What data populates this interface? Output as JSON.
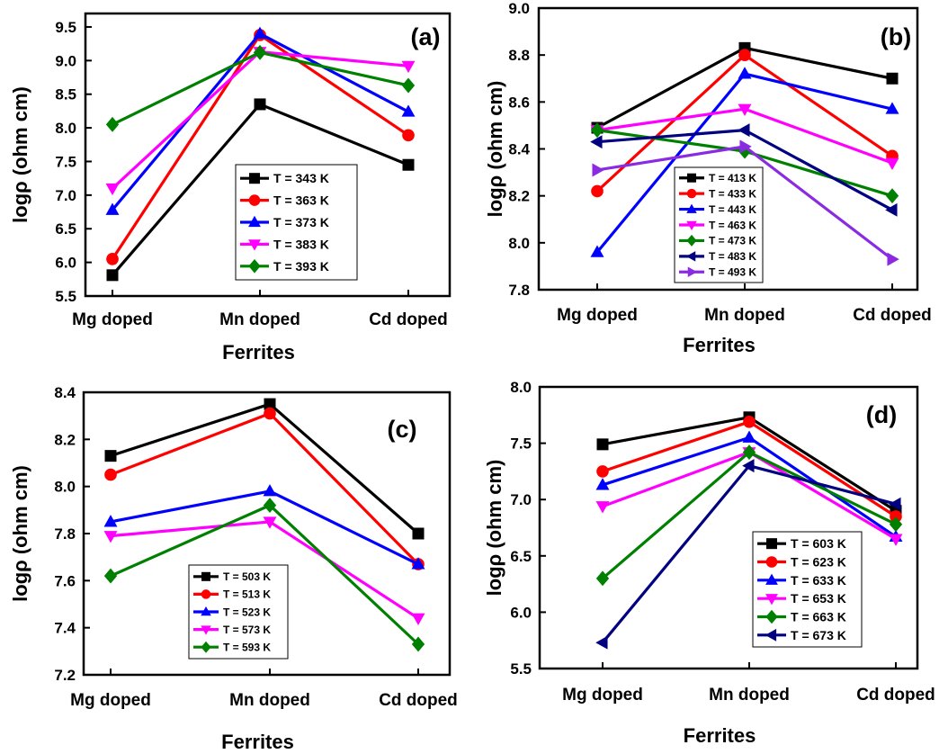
{
  "chart_data": [
    {
      "type": "line",
      "panel_label": "(a)",
      "xlabel": "Ferrites",
      "ylabel": "logρ (ohm cm)",
      "categories": [
        "Mg doped",
        "Mn doped",
        "Cd doped"
      ],
      "ylim": [
        5.5,
        9.7
      ],
      "yticks": [
        "5.5",
        "6.0",
        "6.5",
        "7.0",
        "7.5",
        "8.0",
        "8.5",
        "9.0",
        "9.5"
      ],
      "legend_position": "center-bottom",
      "series": [
        {
          "name": "T = 343 K",
          "color": "#000000",
          "marker": "square",
          "values": [
            5.81,
            8.35,
            7.45
          ]
        },
        {
          "name": "T = 363 K",
          "color": "#ff0000",
          "marker": "circle",
          "values": [
            6.05,
            9.38,
            7.89
          ]
        },
        {
          "name": "T = 373 K",
          "color": "#0000ff",
          "marker": "triangle-up",
          "values": [
            6.78,
            9.4,
            8.24
          ]
        },
        {
          "name": "T = 383 K",
          "color": "#ff00ff",
          "marker": "triangle-down",
          "values": [
            7.1,
            9.13,
            8.92
          ]
        },
        {
          "name": "T = 393 K",
          "color": "#008000",
          "marker": "diamond",
          "values": [
            8.05,
            9.12,
            8.63
          ]
        }
      ]
    },
    {
      "type": "line",
      "panel_label": "(b)",
      "xlabel": "Ferrites",
      "ylabel": "logρ (ohm cm)",
      "categories": [
        "Mg doped",
        "Mn doped",
        "Cd doped"
      ],
      "ylim": [
        7.8,
        9.0
      ],
      "yticks": [
        "7.8",
        "8.0",
        "8.2",
        "8.4",
        "8.6",
        "8.8",
        "9.0"
      ],
      "legend_position": "center-bottom",
      "series": [
        {
          "name": "T = 413 K",
          "color": "#000000",
          "marker": "square",
          "values": [
            8.49,
            8.83,
            8.7
          ]
        },
        {
          "name": "T = 433 K",
          "color": "#ff0000",
          "marker": "circle",
          "values": [
            8.22,
            8.8,
            8.37
          ]
        },
        {
          "name": "T = 443 K",
          "color": "#0000ff",
          "marker": "triangle-up",
          "values": [
            7.96,
            8.72,
            8.57
          ]
        },
        {
          "name": "T = 463 K",
          "color": "#ff00ff",
          "marker": "triangle-down",
          "values": [
            8.48,
            8.57,
            8.34
          ]
        },
        {
          "name": "T = 473 K",
          "color": "#008000",
          "marker": "diamond",
          "values": [
            8.48,
            8.39,
            8.2
          ]
        },
        {
          "name": "T = 483 K",
          "color": "#000080",
          "marker": "triangle-left",
          "values": [
            8.43,
            8.48,
            8.14
          ]
        },
        {
          "name": "T = 493 K",
          "color": "#8a2be2",
          "marker": "triangle-right",
          "values": [
            8.31,
            8.41,
            7.93
          ]
        }
      ]
    },
    {
      "type": "line",
      "panel_label": "(c)",
      "xlabel": "Ferrites",
      "ylabel": "logρ (ohm cm)",
      "categories": [
        "Mg doped",
        "Mn doped",
        "Cd doped"
      ],
      "ylim": [
        7.2,
        8.4
      ],
      "yticks": [
        "7.2",
        "7.4",
        "7.6",
        "7.8",
        "8.0",
        "8.2",
        "8.4"
      ],
      "legend_position": "center-bottom",
      "series": [
        {
          "name": "T = 503 K",
          "color": "#000000",
          "marker": "square",
          "values": [
            8.13,
            8.35,
            7.8
          ]
        },
        {
          "name": "T = 513 K",
          "color": "#ff0000",
          "marker": "circle",
          "values": [
            8.05,
            8.31,
            7.67
          ]
        },
        {
          "name": "T = 523 K",
          "color": "#0000ff",
          "marker": "triangle-up",
          "values": [
            7.85,
            7.98,
            7.67
          ]
        },
        {
          "name": "T = 573 K",
          "color": "#ff00ff",
          "marker": "triangle-down",
          "values": [
            7.79,
            7.85,
            7.44
          ]
        },
        {
          "name": "T = 593 K",
          "color": "#008000",
          "marker": "diamond",
          "values": [
            7.62,
            7.92,
            7.33
          ]
        }
      ]
    },
    {
      "type": "line",
      "panel_label": "(d)",
      "xlabel": "Ferrites",
      "ylabel": "logρ (ohm cm)",
      "categories": [
        "Mg doped",
        "Mn doped",
        "Cd doped"
      ],
      "ylim": [
        5.5,
        8.0
      ],
      "yticks": [
        "5.5",
        "6.0",
        "6.5",
        "7.0",
        "7.5",
        "8.0"
      ],
      "legend_position": "right-bottom",
      "series": [
        {
          "name": "T = 603 K",
          "color": "#000000",
          "marker": "square",
          "values": [
            7.49,
            7.73,
            6.9
          ]
        },
        {
          "name": "T = 623 K",
          "color": "#ff0000",
          "marker": "circle",
          "values": [
            7.25,
            7.69,
            6.85
          ]
        },
        {
          "name": "T = 633 K",
          "color": "#0000ff",
          "marker": "triangle-up",
          "values": [
            7.13,
            7.55,
            6.67
          ]
        },
        {
          "name": "T = 653 K",
          "color": "#ff00ff",
          "marker": "triangle-down",
          "values": [
            6.94,
            7.42,
            6.65
          ]
        },
        {
          "name": "T = 663 K",
          "color": "#008000",
          "marker": "diamond",
          "values": [
            6.3,
            7.42,
            6.78
          ]
        },
        {
          "name": "T = 673 K",
          "color": "#000080",
          "marker": "triangle-left",
          "values": [
            5.73,
            7.3,
            6.96
          ]
        }
      ]
    }
  ]
}
